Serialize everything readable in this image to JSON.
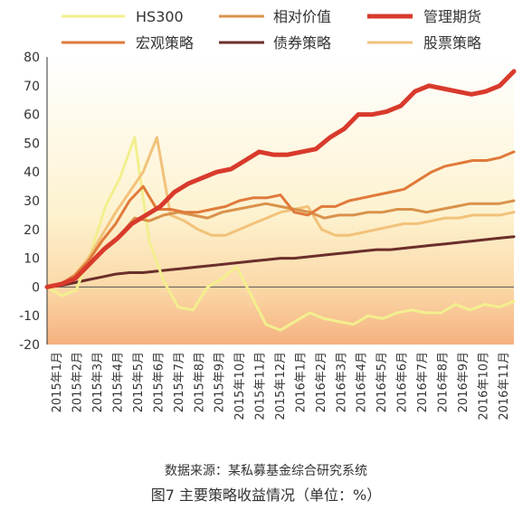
{
  "figure": {
    "source": "数据来源：某私募基金综合研究系统",
    "caption": "图7  主要策略收益情况（单位：%）"
  },
  "chart_data": {
    "type": "line",
    "ylim": [
      -20,
      80
    ],
    "yticks": [
      "80",
      "70",
      "60",
      "50",
      "40",
      "30",
      "20",
      "10",
      "0",
      "-10",
      "-20"
    ],
    "x_labels": [
      "2015年1月",
      "2015年2月",
      "2015年3月",
      "2015年4月",
      "2015年5月",
      "2015年6月",
      "2015年7月",
      "2015年8月",
      "2015年9月",
      "2015年10月",
      "2015年11月",
      "2015年12月",
      "2016年1月",
      "2016年2月",
      "2016年3月",
      "2016年4月",
      "2016年5月",
      "2016年6月",
      "2016年7月",
      "2016年8月",
      "2016年9月",
      "2016年10月",
      "2016年11月"
    ],
    "legend_position": "top",
    "grid": false,
    "background_gradient": true,
    "series": [
      {
        "name": "HS300",
        "color": "#f3ef8e",
        "width": 3,
        "values": [
          0,
          -3,
          -1,
          12,
          28,
          38,
          52,
          16,
          2,
          -7,
          -8,
          0,
          3,
          7,
          -3,
          -13,
          -15,
          -12,
          -9,
          -11,
          -12,
          -13,
          -10,
          -11,
          -9,
          -8,
          -9,
          -9,
          -6,
          -8,
          -6,
          -7,
          -5
        ]
      },
      {
        "name": "相对价值",
        "color": "#d9924b",
        "width": 3,
        "values": [
          0,
          1,
          3,
          8,
          14,
          18,
          24,
          23,
          25,
          26,
          25,
          24,
          26,
          27,
          28,
          29,
          28,
          27,
          26,
          24,
          25,
          25,
          26,
          26,
          27,
          27,
          26,
          27,
          28,
          29,
          29,
          29,
          30
        ]
      },
      {
        "name": "管理期货",
        "color": "#d83a2c",
        "width": 5,
        "values": [
          0,
          1,
          3,
          8,
          13,
          17,
          22,
          25,
          28,
          33,
          36,
          38,
          40,
          41,
          44,
          47,
          46,
          46,
          47,
          48,
          52,
          55,
          60,
          60,
          61,
          63,
          68,
          70,
          69,
          68,
          67,
          68,
          70,
          75
        ]
      },
      {
        "name": "宏观策略",
        "color": "#e07a3a",
        "width": 3,
        "values": [
          0,
          1,
          4,
          9,
          16,
          22,
          30,
          35,
          27,
          27,
          26,
          26,
          27,
          28,
          30,
          31,
          31,
          32,
          26,
          25,
          28,
          28,
          30,
          31,
          32,
          33,
          34,
          37,
          40,
          42,
          43,
          44,
          44,
          45,
          47
        ]
      },
      {
        "name": "债券策略",
        "color": "#6b2e2b",
        "width": 3,
        "values": [
          0,
          0.5,
          1.5,
          2.5,
          3.5,
          4.5,
          5,
          5,
          5.5,
          6,
          6.5,
          7,
          7.5,
          8,
          8.5,
          9,
          9.5,
          10,
          10,
          10.5,
          11,
          11.5,
          12,
          12.5,
          13,
          13,
          13.5,
          14,
          14.5,
          15,
          15.5,
          16,
          16.5,
          17,
          17.5
        ]
      },
      {
        "name": "股票策略",
        "color": "#f2c27a",
        "width": 3,
        "values": [
          0,
          1,
          4,
          10,
          18,
          26,
          33,
          40,
          52,
          25,
          23,
          20,
          18,
          18,
          20,
          22,
          24,
          26,
          27,
          28,
          20,
          18,
          18,
          19,
          20,
          21,
          22,
          22,
          23,
          24,
          24,
          25,
          25,
          25,
          26
        ]
      }
    ]
  }
}
